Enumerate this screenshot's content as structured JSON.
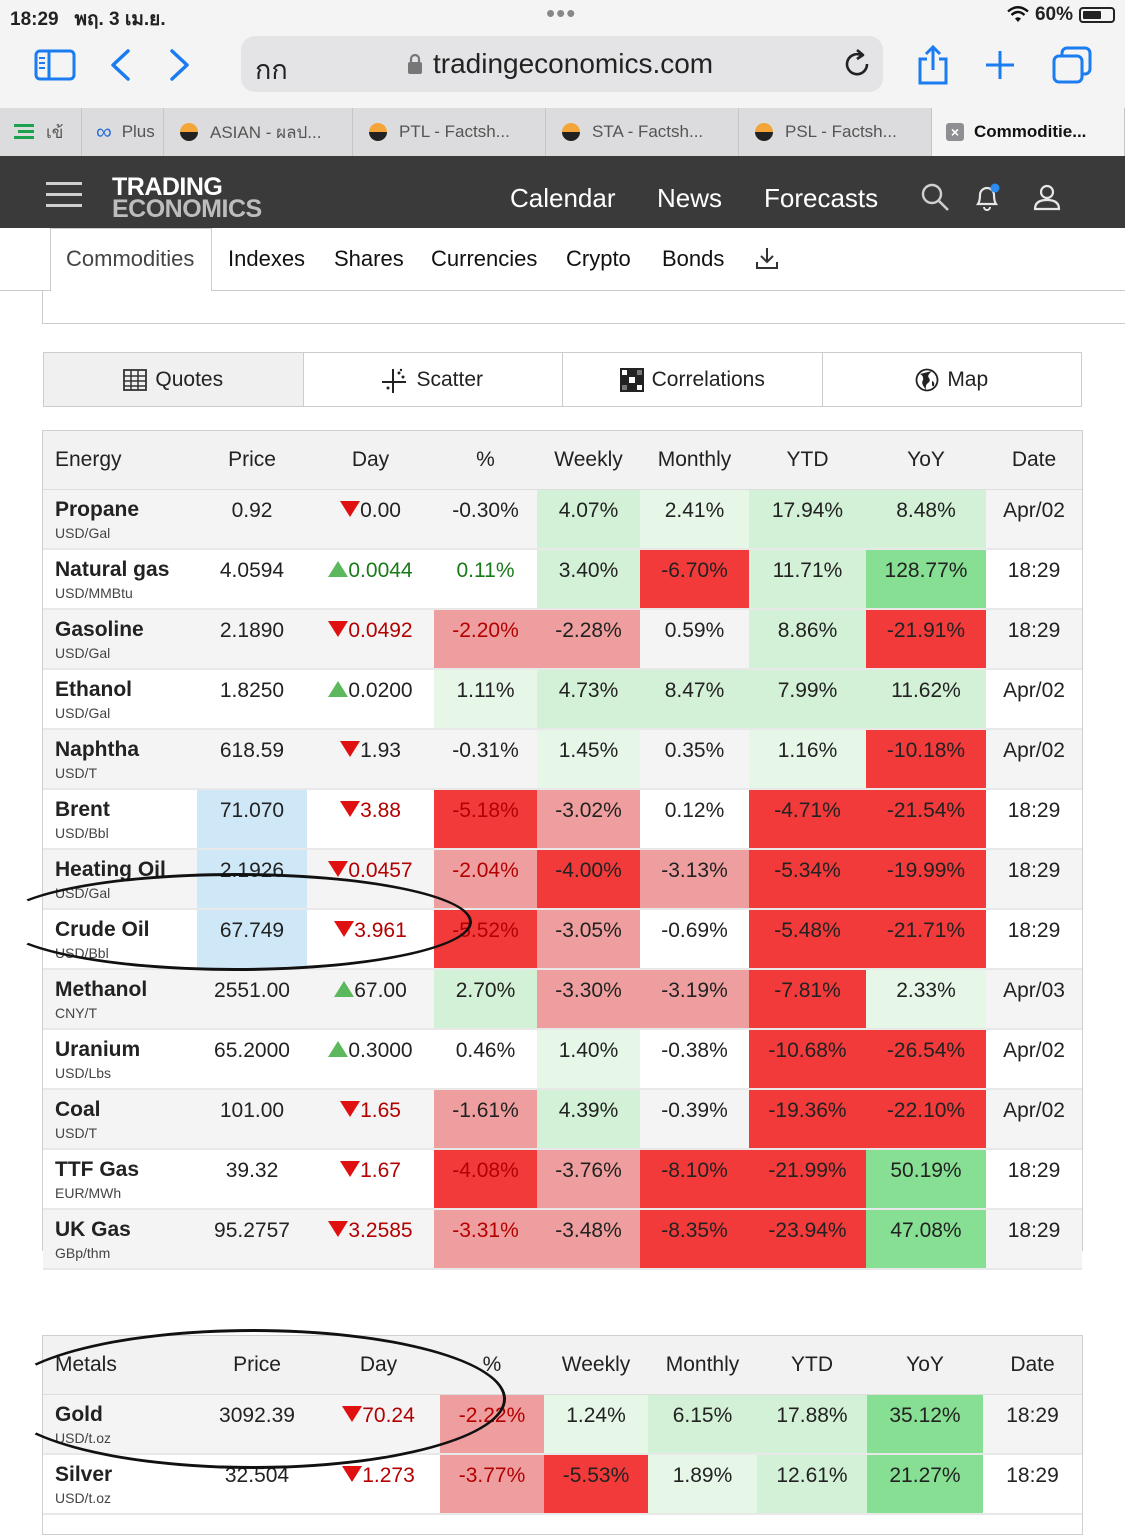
{
  "status": {
    "time": "18:29",
    "date": "พฤ. 3 เม.ย.",
    "battery": "60%"
  },
  "browser": {
    "aa_label": "กก",
    "url": "tradingeconomics.com",
    "tabs": [
      {
        "label": "เข้"
      },
      {
        "label": "Plus"
      },
      {
        "label": "ASIAN - ผลป..."
      },
      {
        "label": "PTL - Factsh..."
      },
      {
        "label": "STA - Factsh..."
      },
      {
        "label": "PSL - Factsh..."
      },
      {
        "label": "Commoditie..."
      }
    ]
  },
  "site": {
    "logo_line1": "TRADING",
    "logo_line2": "ECONOMICS",
    "nav": [
      "Calendar",
      "News",
      "Forecasts"
    ]
  },
  "subnav": [
    "Commodities",
    "Indexes",
    "Shares",
    "Currencies",
    "Crypto",
    "Bonds"
  ],
  "views": [
    "Quotes",
    "Scatter",
    "Correlations",
    "Map"
  ],
  "energy": {
    "headers": [
      "Energy",
      "Price",
      "Day",
      "%",
      "Weekly",
      "Monthly",
      "YTD",
      "YoY",
      "Date"
    ],
    "rows": [
      {
        "name": "Propane",
        "unit": "USD/Gal",
        "price": "0.92",
        "day": "0.00",
        "dir": "down",
        "pct": "-0.30%",
        "weekly": "4.07%",
        "monthly": "2.41%",
        "ytd": "17.94%",
        "yoy": "8.48%",
        "date": "Apr/02"
      },
      {
        "name": "Natural gas",
        "unit": "USD/MMBtu",
        "price": "4.0594",
        "day": "0.0044",
        "dir": "up",
        "pct": "0.11%",
        "weekly": "3.40%",
        "monthly": "-6.70%",
        "ytd": "11.71%",
        "yoy": "128.77%",
        "date": "18:29"
      },
      {
        "name": "Gasoline",
        "unit": "USD/Gal",
        "price": "2.1890",
        "day": "0.0492",
        "dir": "down",
        "pct": "-2.20%",
        "weekly": "-2.28%",
        "monthly": "0.59%",
        "ytd": "8.86%",
        "yoy": "-21.91%",
        "date": "18:29"
      },
      {
        "name": "Ethanol",
        "unit": "USD/Gal",
        "price": "1.8250",
        "day": "0.0200",
        "dir": "up",
        "pct": "1.11%",
        "weekly": "4.73%",
        "monthly": "8.47%",
        "ytd": "7.99%",
        "yoy": "11.62%",
        "date": "Apr/02"
      },
      {
        "name": "Naphtha",
        "unit": "USD/T",
        "price": "618.59",
        "day": "1.93",
        "dir": "down",
        "pct": "-0.31%",
        "weekly": "1.45%",
        "monthly": "0.35%",
        "ytd": "1.16%",
        "yoy": "-10.18%",
        "date": "Apr/02"
      },
      {
        "name": "Brent",
        "unit": "USD/Bbl",
        "price": "71.070",
        "day": "3.88",
        "dir": "down",
        "pct": "-5.18%",
        "weekly": "-3.02%",
        "monthly": "0.12%",
        "ytd": "-4.71%",
        "yoy": "-21.54%",
        "date": "18:29"
      },
      {
        "name": "Heating Oil",
        "unit": "USD/Gal",
        "price": "2.1926",
        "day": "0.0457",
        "dir": "down",
        "pct": "-2.04%",
        "weekly": "-4.00%",
        "monthly": "-3.13%",
        "ytd": "-5.34%",
        "yoy": "-19.99%",
        "date": "18:29"
      },
      {
        "name": "Crude Oil",
        "unit": "USD/Bbl",
        "price": "67.749",
        "day": "3.961",
        "dir": "down",
        "pct": "-5.52%",
        "weekly": "-3.05%",
        "monthly": "-0.69%",
        "ytd": "-5.48%",
        "yoy": "-21.71%",
        "date": "18:29"
      },
      {
        "name": "Methanol",
        "unit": "CNY/T",
        "price": "2551.00",
        "day": "67.00",
        "dir": "up",
        "pct": "2.70%",
        "weekly": "-3.30%",
        "monthly": "-3.19%",
        "ytd": "-7.81%",
        "yoy": "2.33%",
        "date": "Apr/03"
      },
      {
        "name": "Uranium",
        "unit": "USD/Lbs",
        "price": "65.2000",
        "day": "0.3000",
        "dir": "up",
        "pct": "0.46%",
        "weekly": "1.40%",
        "monthly": "-0.38%",
        "ytd": "-10.68%",
        "yoy": "-26.54%",
        "date": "Apr/02"
      },
      {
        "name": "Coal",
        "unit": "USD/T",
        "price": "101.00",
        "day": "1.65",
        "dir": "down",
        "pct": "-1.61%",
        "weekly": "4.39%",
        "monthly": "-0.39%",
        "ytd": "-19.36%",
        "yoy": "-22.10%",
        "date": "Apr/02"
      },
      {
        "name": "TTF Gas",
        "unit": "EUR/MWh",
        "price": "39.32",
        "day": "1.67",
        "dir": "down",
        "pct": "-4.08%",
        "weekly": "-3.76%",
        "monthly": "-8.10%",
        "ytd": "-21.99%",
        "yoy": "50.19%",
        "date": "18:29"
      },
      {
        "name": "UK Gas",
        "unit": "GBp/thm",
        "price": "95.2757",
        "day": "3.2585",
        "dir": "down",
        "pct": "-3.31%",
        "weekly": "-3.48%",
        "monthly": "-8.35%",
        "ytd": "-23.94%",
        "yoy": "47.08%",
        "date": "18:29"
      }
    ]
  },
  "metals": {
    "headers": [
      "Metals",
      "Price",
      "Day",
      "%",
      "Weekly",
      "Monthly",
      "YTD",
      "YoY",
      "Date"
    ],
    "rows": [
      {
        "name": "Gold",
        "unit": "USD/t.oz",
        "price": "3092.39",
        "day": "70.24",
        "dir": "down",
        "pct": "-2.22%",
        "weekly": "1.24%",
        "monthly": "6.15%",
        "ytd": "17.88%",
        "yoy": "35.12%",
        "date": "18:29"
      },
      {
        "name": "Silver",
        "unit": "USD/t.oz",
        "price": "32.504",
        "day": "1.273",
        "dir": "down",
        "pct": "-3.77%",
        "weekly": "-5.53%",
        "monthly": "1.89%",
        "ytd": "12.61%",
        "yoy": "21.27%",
        "date": "18:29"
      }
    ]
  },
  "colors": {
    "header_bg": "#3a3a3a",
    "price_highlight": "#cfe8f7",
    "neg_strong": "#f23a3a",
    "neg_mid": "#ee9e9e",
    "neg_light": "#fbe1e1",
    "pos_strong": "#86df92",
    "pos_mid": "#d3f1d6",
    "pos_light": "#e6f7e8",
    "ios_blue": "#1a7cf0"
  }
}
